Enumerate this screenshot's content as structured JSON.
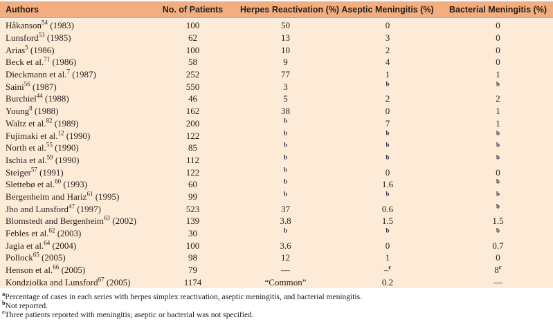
{
  "colors": {
    "header_bg": "#f2ae7e",
    "header_edge": "#e69d6c",
    "body_bg": "#fdebd8",
    "text": "#211c1a"
  },
  "table": {
    "columns": [
      "Authors",
      "No. of Patients",
      "Herpes Reactivation (%)",
      "Aseptic Meningitis (%)",
      "Bacterial Meningitis (%)"
    ],
    "rows": [
      {
        "name": "Håkanson",
        "ref": "54",
        "year": "(1983)",
        "patients": "100",
        "herpes": "50",
        "aseptic": "0",
        "bacterial": "0"
      },
      {
        "name": "Lunsford",
        "ref": "53",
        "year": "(1985)",
        "patients": "62",
        "herpes": "13",
        "aseptic": "3",
        "bacterial": "0"
      },
      {
        "name": "Arias",
        "ref": "5",
        "year": "(1986)",
        "patients": "100",
        "herpes": "10",
        "aseptic": "2",
        "bacterial": "0"
      },
      {
        "name": "Beck et al.",
        "ref": "71",
        "year": "(1986)",
        "patients": "58",
        "herpes": "9",
        "aseptic": "4",
        "bacterial": "0"
      },
      {
        "name": "Dieckmann et al.",
        "ref": "7",
        "year": "(1987)",
        "patients": "252",
        "herpes": "77",
        "aseptic": "1",
        "bacterial": "1"
      },
      {
        "name": "Saini",
        "ref": "56",
        "year": "(1987)",
        "patients": "550",
        "herpes": "3",
        "aseptic": "^b",
        "bacterial": "^b"
      },
      {
        "name": "Burchiel",
        "ref": "44",
        "year": "(1988)",
        "patients": "46",
        "herpes": "5",
        "aseptic": "2",
        "bacterial": "2"
      },
      {
        "name": "Young",
        "ref": "8",
        "year": "(1988)",
        "patients": "162",
        "herpes": "38",
        "aseptic": "0",
        "bacterial": "1"
      },
      {
        "name": "Waltz et al.",
        "ref": "82",
        "year": "(1989)",
        "patients": "200",
        "herpes": "^b",
        "aseptic": "7",
        "bacterial": "1"
      },
      {
        "name": "Fujimaki et al.",
        "ref": "12",
        "year": "(1990)",
        "patients": "122",
        "herpes": "^b",
        "aseptic": "^b",
        "bacterial": "^b"
      },
      {
        "name": "North et al.",
        "ref": "55",
        "year": "(1990)",
        "patients": "85",
        "herpes": "^b",
        "aseptic": "^b",
        "bacterial": "^b"
      },
      {
        "name": "Ischia et al.",
        "ref": "59",
        "year": "(1990)",
        "patients": "112",
        "herpes": "^b",
        "aseptic": "^b",
        "bacterial": "^b"
      },
      {
        "name": "Steiger",
        "ref": "57",
        "year": "(1991)",
        "patients": "122",
        "herpes": "^b",
        "aseptic": "0",
        "bacterial": "0"
      },
      {
        "name": "Slettebø et al.",
        "ref": "60",
        "year": "(1993)",
        "patients": "60",
        "herpes": "^b",
        "aseptic": "1.6",
        "bacterial": "^b"
      },
      {
        "name": "Bergenheim and Hariz",
        "ref": "61",
        "year": "(1995)",
        "patients": "99",
        "herpes": "^b",
        "aseptic": "^b",
        "bacterial": "^b"
      },
      {
        "name": "Jho and Lunsford",
        "ref": "47",
        "year": "(1997)",
        "patients": "523",
        "herpes": "37",
        "aseptic": "0.6",
        "bacterial": "^b"
      },
      {
        "name": "Blomstedt and Bergenheim",
        "ref": "63",
        "year": "(2002)",
        "patients": "139",
        "herpes": "3.8",
        "aseptic": "1.5",
        "bacterial": "1.5"
      },
      {
        "name": "Febles et al.",
        "ref": "62",
        "year": "(2003)",
        "patients": "30",
        "herpes": "^b",
        "aseptic": "^b",
        "bacterial": "^b"
      },
      {
        "name": "Jagia et al.",
        "ref": "64",
        "year": "(2004)",
        "patients": "100",
        "herpes": "3.6",
        "aseptic": "0",
        "bacterial": "0.7"
      },
      {
        "name": "Pollock",
        "ref": "65",
        "year": "(2005)",
        "patients": "98",
        "herpes": "12",
        "aseptic": "1",
        "bacterial": "0"
      },
      {
        "name": "Henson et al.",
        "ref": "66",
        "year": "(2005)",
        "patients": "79",
        "herpes": "—",
        "aseptic": "–^c",
        "bacterial": "8^c"
      },
      {
        "name": "Kondziolka and Lunsford",
        "ref": "67",
        "year": "(2005)",
        "patients": "1174",
        "herpes": "“Common”",
        "aseptic": "0.2",
        "bacterial": "—"
      }
    ]
  },
  "footnotes": [
    {
      "marker": "a",
      "text": "Percentage of cases in each series with herpes simplex reactivation, aseptic meningitis, and bacterial meningitis."
    },
    {
      "marker": "b",
      "text": "Not reported."
    },
    {
      "marker": "c",
      "text": "Three patients reported with meningitis; aseptic or bacterial was not specified."
    }
  ]
}
